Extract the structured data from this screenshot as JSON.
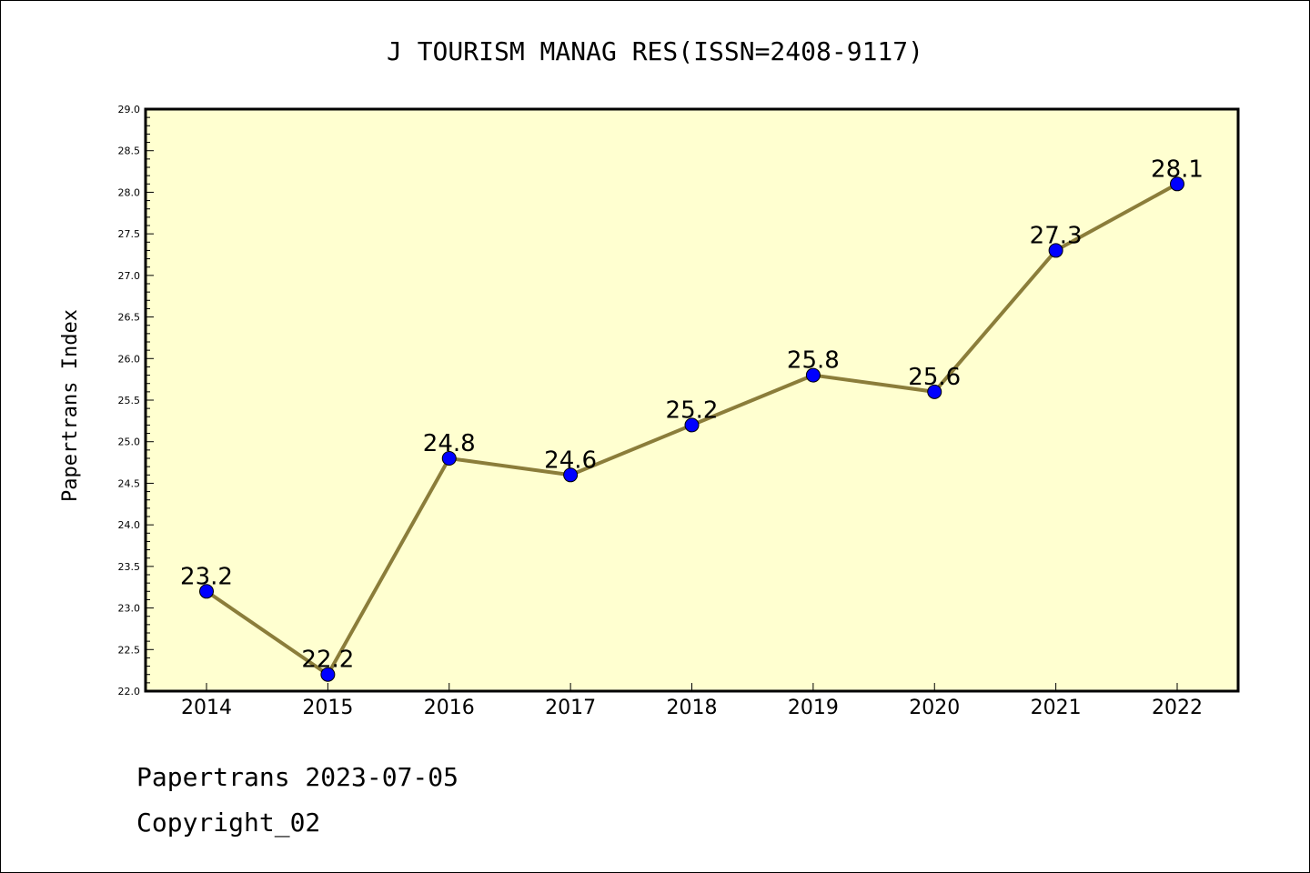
{
  "chart_data": {
    "type": "line",
    "title": "J TOURISM MANAG RES(ISSN=2408-9117)",
    "xlabel": "",
    "ylabel": "Papertrans Index",
    "categories": [
      "2014",
      "2015",
      "2016",
      "2017",
      "2018",
      "2019",
      "2020",
      "2021",
      "2022"
    ],
    "series": [
      {
        "values": [
          23.2,
          22.2,
          24.8,
          24.6,
          25.2,
          25.8,
          25.6,
          27.3,
          28.1
        ]
      }
    ],
    "data_labels": [
      "23.2",
      "22.2",
      "24.8",
      "24.6",
      "25.2",
      "25.8",
      "25.6",
      "27.3",
      "28.1"
    ],
    "ylim": [
      22.0,
      29.0
    ],
    "yticks": [
      "22.0",
      "22.5",
      "23.0",
      "23.5",
      "24.0",
      "24.5",
      "25.0",
      "25.5",
      "26.0",
      "26.5",
      "27.0",
      "27.5",
      "28.0",
      "28.5",
      "29.0"
    ],
    "grid": false,
    "colors": {
      "line": "#8b7d3a",
      "marker": "#0000ff",
      "plot_bg": "#ffffd0"
    }
  },
  "footer": {
    "line1": "Papertrans 2023-07-05",
    "line2": "Copyright_02"
  }
}
